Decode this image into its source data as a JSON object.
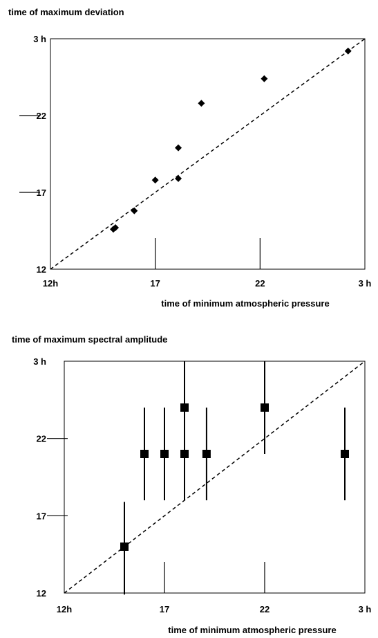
{
  "chart_data": [
    {
      "type": "scatter",
      "title": "time of maximum deviation",
      "xlabel": "time of minimum atmospheric pressure",
      "ylabel": "",
      "xlim": [
        12,
        27
      ],
      "ylim": [
        12,
        27
      ],
      "x_ticks": [
        {
          "value": 12,
          "label": "12h"
        },
        {
          "value": 17,
          "label": "17"
        },
        {
          "value": 22,
          "label": "22"
        },
        {
          "value": 27,
          "label": "3 h"
        }
      ],
      "y_ticks": [
        {
          "value": 12,
          "label": "12"
        },
        {
          "value": 17,
          "label": "17"
        },
        {
          "value": 22,
          "label": "22"
        },
        {
          "value": 27,
          "label": "3 h"
        }
      ],
      "marker": "diamond",
      "reference_line": "y = x",
      "points": [
        {
          "x": 15.0,
          "y": 14.6
        },
        {
          "x": 15.1,
          "y": 14.7
        },
        {
          "x": 16.0,
          "y": 15.8
        },
        {
          "x": 17.0,
          "y": 17.8
        },
        {
          "x": 18.1,
          "y": 17.9
        },
        {
          "x": 18.1,
          "y": 19.9
        },
        {
          "x": 19.2,
          "y": 22.8
        },
        {
          "x": 22.2,
          "y": 24.4
        },
        {
          "x": 26.2,
          "y": 26.2
        }
      ]
    },
    {
      "type": "scatter",
      "title": "time of maximum spectral amplitude",
      "xlabel": "time of minimum atmospheric pressure",
      "ylabel": "",
      "xlim": [
        12,
        27
      ],
      "ylim": [
        12,
        27
      ],
      "x_ticks": [
        {
          "value": 12,
          "label": "12h"
        },
        {
          "value": 17,
          "label": "17"
        },
        {
          "value": 22,
          "label": "22"
        },
        {
          "value": 27,
          "label": "3 h"
        }
      ],
      "y_ticks": [
        {
          "value": 12,
          "label": "12"
        },
        {
          "value": 17,
          "label": "17"
        },
        {
          "value": 22,
          "label": "22"
        },
        {
          "value": 27,
          "label": "3 h"
        }
      ],
      "marker": "square",
      "reference_line": "y = x",
      "points": [
        {
          "x": 15.0,
          "y": 15.0,
          "ylow": 11.9,
          "yhigh": 17.9
        },
        {
          "x": 16.0,
          "y": 21.0,
          "ylow": 18.0,
          "yhigh": 24.0
        },
        {
          "x": 17.0,
          "y": 21.0,
          "ylow": 18.0,
          "yhigh": 24.0
        },
        {
          "x": 18.0,
          "y": 24.0,
          "ylow": 21.0,
          "yhigh": 27.0
        },
        {
          "x": 18.0,
          "y": 21.0,
          "ylow": 18.0,
          "yhigh": 24.0
        },
        {
          "x": 19.1,
          "y": 21.0,
          "ylow": 18.0,
          "yhigh": 24.0
        },
        {
          "x": 22.0,
          "y": 24.0,
          "ylow": 21.0,
          "yhigh": 27.0
        },
        {
          "x": 26.0,
          "y": 21.0,
          "ylow": 18.0,
          "yhigh": 24.0
        }
      ]
    }
  ]
}
